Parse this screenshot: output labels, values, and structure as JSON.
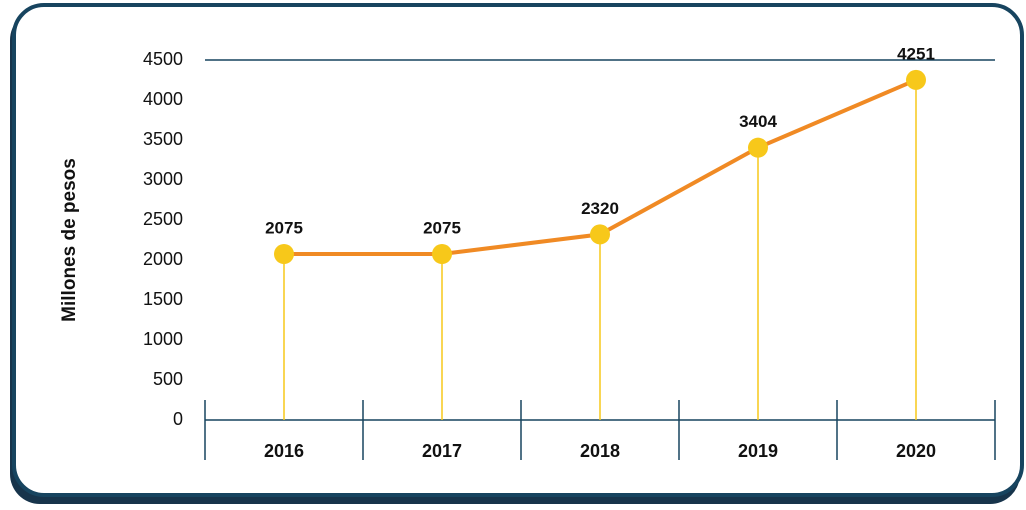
{
  "chart_data": {
    "type": "line",
    "y_label": "Millones de pesos",
    "categories": [
      "2016",
      "2017",
      "2018",
      "2019",
      "2020"
    ],
    "series": [
      {
        "name": "Millones de pesos",
        "color": "#f08a24",
        "marker_color": "#f7c81a",
        "values": [
          2075,
          2075,
          2320,
          3404,
          4251
        ]
      }
    ],
    "ylim": [
      0,
      4500
    ],
    "yticks": [
      0,
      500,
      1000,
      1500,
      2000,
      2500,
      3000,
      3500,
      4000,
      4500
    ]
  }
}
